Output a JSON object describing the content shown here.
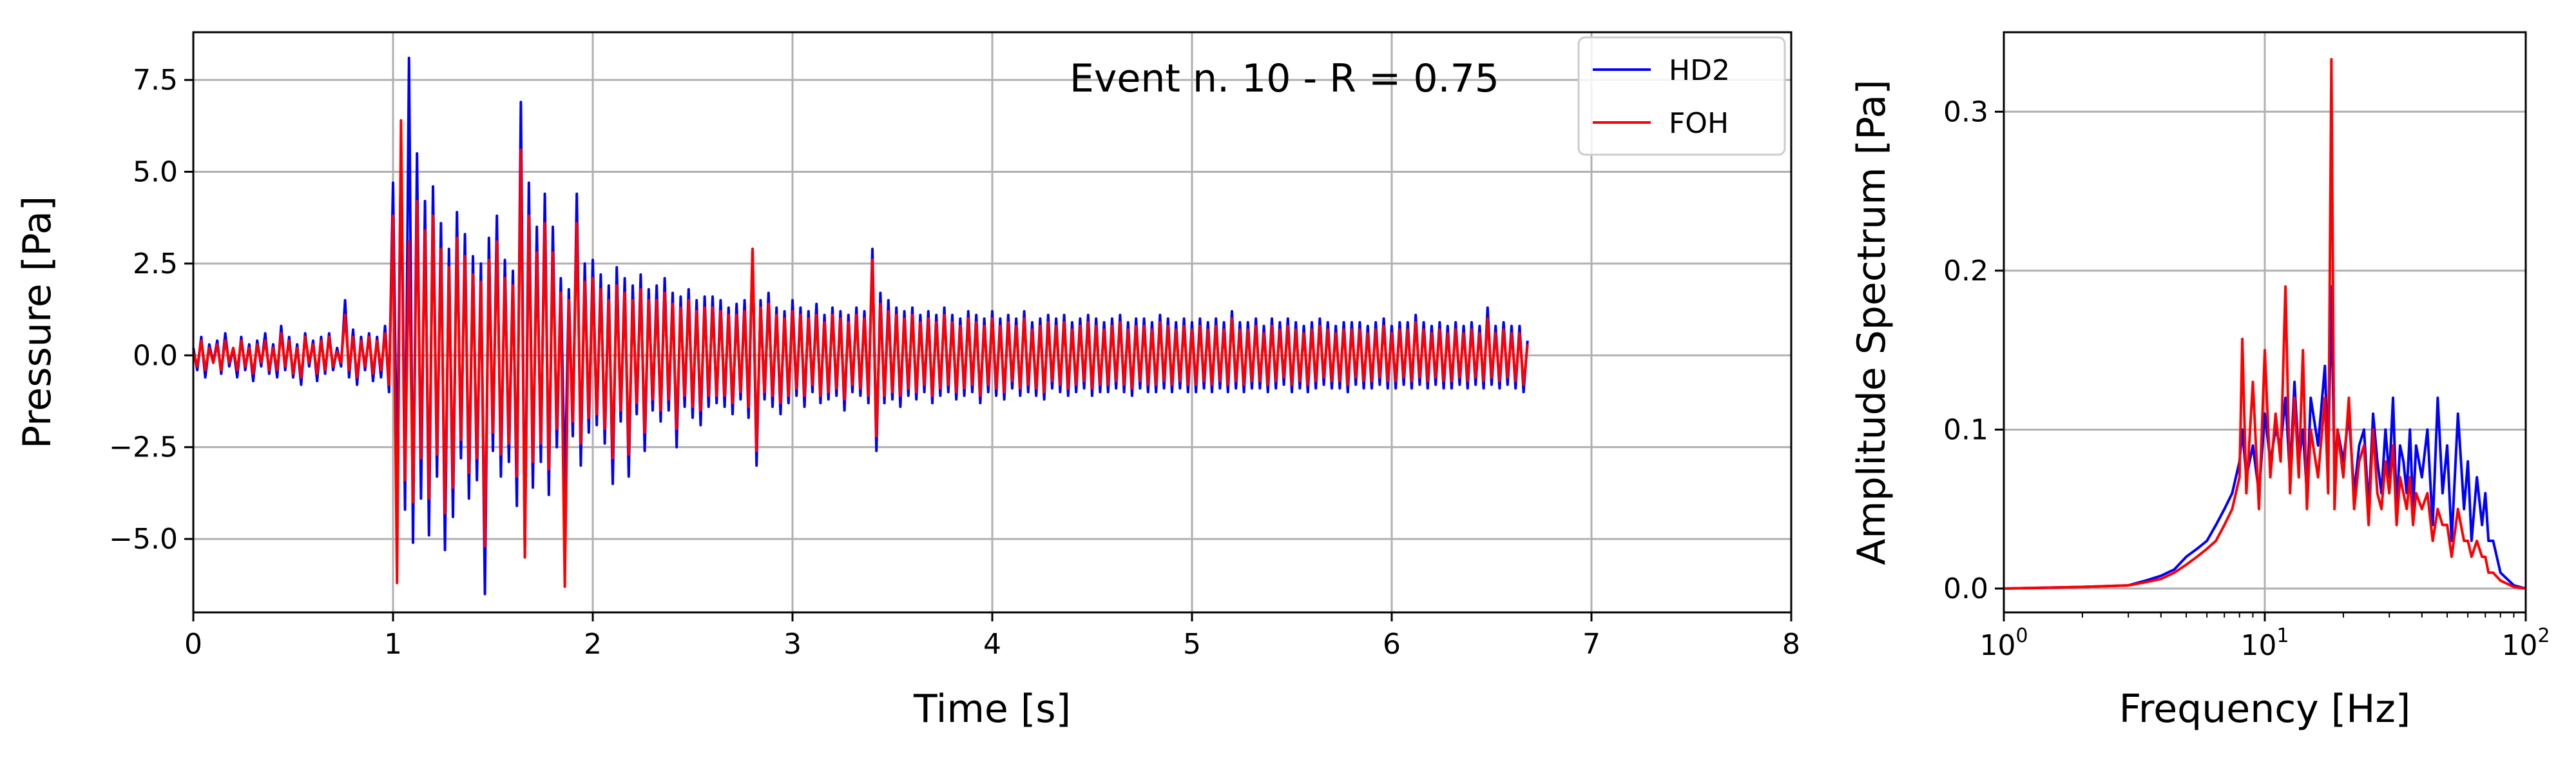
{
  "colors": {
    "hd2": "#0000ff",
    "foh": "#ff0000",
    "grid": "#b0b0b0",
    "axis": "#000000"
  },
  "chart_data": [
    {
      "type": "line",
      "title": "",
      "annotation": "Event n. 10 - R = 0.75",
      "xlabel": "Time [s]",
      "ylabel": "Pressure [Pa]",
      "xlim": [
        0,
        8
      ],
      "ylim": [
        -7.0,
        8.8
      ],
      "xticks": [
        0,
        1,
        2,
        3,
        4,
        5,
        6,
        7,
        8
      ],
      "xtick_labels": [
        "0",
        "1",
        "2",
        "3",
        "4",
        "5",
        "6",
        "7",
        "8"
      ],
      "yticks": [
        -5.0,
        -2.5,
        0.0,
        2.5,
        5.0,
        7.5
      ],
      "ytick_labels": [
        "−5.0",
        "−2.5",
        "0.0",
        "2.5",
        "5.0",
        "7.5"
      ],
      "grid": true,
      "legend": {
        "placement": "top-right",
        "entries": [
          "HD2",
          "FOH"
        ]
      },
      "series": [
        {
          "name": "HD2",
          "color": "#0000ff",
          "sample_interval_s": 0.02,
          "x_start": 0,
          "values": [
            0.2,
            -0.4,
            0.5,
            -0.6,
            0.3,
            -0.2,
            0.4,
            -0.5,
            0.6,
            -0.3,
            0.2,
            -0.6,
            0.5,
            -0.4,
            0.3,
            -0.7,
            0.4,
            -0.3,
            0.6,
            -0.5,
            0.3,
            -0.6,
            0.8,
            -0.4,
            0.5,
            -0.6,
            0.3,
            -0.8,
            0.6,
            -0.3,
            0.4,
            -0.7,
            0.5,
            -0.5,
            0.6,
            -0.4,
            0.2,
            -0.3,
            1.5,
            -0.6,
            0.7,
            -0.8,
            0.5,
            -0.4,
            0.6,
            -0.7,
            0.5,
            -0.6,
            0.8,
            -1.0,
            4.7,
            -3.5,
            5.8,
            -4.2,
            8.1,
            -5.1,
            5.5,
            -3.9,
            4.2,
            -4.9,
            4.6,
            -3.3,
            3.6,
            -5.3,
            2.9,
            -4.4,
            3.9,
            -2.8,
            3.3,
            -3.9,
            2.7,
            -3.4,
            2.5,
            -6.5,
            3.2,
            -2.6,
            3.8,
            -3.3,
            2.6,
            -2.9,
            2.3,
            -4.1,
            6.9,
            -5.5,
            4.7,
            -3.6,
            3.5,
            -2.9,
            4.4,
            -3.8,
            3.5,
            -2.5,
            2.1,
            -3.7,
            1.8,
            -2.2,
            4.4,
            -3.0,
            2.5,
            -2.1,
            2.6,
            -1.9,
            2.2,
            -2.4,
            1.9,
            -3.5,
            2.4,
            -1.8,
            2.1,
            -3.3,
            1.9,
            -1.6,
            2.2,
            -2.6,
            1.8,
            -1.5,
            1.9,
            -1.8,
            2.1,
            -1.5,
            1.7,
            -2.5,
            1.6,
            -1.4,
            1.8,
            -1.7,
            1.5,
            -1.9,
            1.6,
            -1.4,
            1.6,
            -1.3,
            1.5,
            -1.4,
            1.3,
            -1.6,
            1.4,
            -1.2,
            1.5,
            -1.7,
            2.9,
            -3.0,
            1.5,
            -1.2,
            1.7,
            -1.4,
            1.3,
            -1.6,
            1.2,
            -1.3,
            1.5,
            -1.1,
            1.3,
            -1.4,
            1.2,
            -1.0,
            1.4,
            -1.3,
            1.1,
            -1.2,
            1.3,
            -1.1,
            1.2,
            -1.5,
            1.1,
            -1.0,
            1.3,
            -1.1,
            1.2,
            -1.3,
            2.9,
            -2.6,
            1.7,
            -1.3,
            1.5,
            -1.2,
            1.3,
            -1.4,
            1.2,
            -1.1,
            1.3,
            -1.2,
            1.1,
            -1.0,
            1.2,
            -1.3,
            1.1,
            -1.1,
            1.3,
            -1.0,
            1.1,
            -1.2,
            1.0,
            -1.1,
            1.2,
            -1.0,
            1.1,
            -1.3,
            1.0,
            -1.0,
            1.2,
            -1.1,
            1.0,
            -1.2,
            1.1,
            -0.9,
            1.0,
            -1.1,
            1.2,
            -1.0,
            0.9,
            -1.1,
            1.0,
            -1.2,
            1.1,
            -0.9,
            1.0,
            -1.0,
            1.1,
            -1.1,
            0.9,
            -1.0,
            1.0,
            -0.9,
            1.1,
            -1.1,
            1.0,
            -1.0,
            0.9,
            -1.0,
            1.0,
            -0.9,
            1.1,
            -1.0,
            0.9,
            -1.1,
            1.0,
            -0.9,
            1.0,
            -1.0,
            0.9,
            -1.0,
            1.1,
            -0.9,
            1.0,
            -1.0,
            0.9,
            -0.9,
            1.0,
            -1.0,
            0.9,
            -1.0,
            1.0,
            -0.9,
            0.9,
            -1.0,
            1.0,
            -0.9,
            0.9,
            -1.0,
            1.2,
            -0.9,
            0.9,
            -1.0,
            0.9,
            -0.9,
            1.0,
            -0.9,
            0.8,
            -1.0,
            1.0,
            -0.9,
            0.9,
            -0.8,
            1.0,
            -1.0,
            0.9,
            -0.9,
            0.8,
            -1.0,
            0.9,
            -0.9,
            1.0,
            -0.8,
            0.9,
            -0.9,
            0.8,
            -0.9,
            0.9,
            -1.0,
            0.9,
            -0.8,
            0.9,
            -0.9,
            0.8,
            -0.9,
            0.9,
            -0.8,
            1.0,
            -0.9,
            0.8,
            -0.9,
            0.9,
            -0.8,
            0.9,
            -0.9,
            1.1,
            -0.8,
            0.9,
            -0.9,
            0.8,
            -0.8,
            0.9,
            -0.9,
            0.8,
            -0.9,
            0.9,
            -0.8,
            0.8,
            -0.9,
            0.9,
            -0.8,
            0.8,
            -0.9,
            1.3,
            -0.8,
            0.8,
            -0.9,
            0.9,
            -0.8,
            0.8,
            -0.9,
            0.8,
            -1.0,
            0.4
          ]
        },
        {
          "name": "FOH",
          "color": "#ff0000",
          "sample_interval_s": 0.02,
          "x_start": 0,
          "values": [
            0.1,
            -0.3,
            0.4,
            -0.4,
            0.2,
            -0.2,
            0.3,
            -0.4,
            0.4,
            -0.2,
            0.2,
            -0.4,
            0.4,
            -0.3,
            0.2,
            -0.5,
            0.3,
            -0.2,
            0.4,
            -0.4,
            0.2,
            -0.4,
            0.6,
            -0.3,
            0.4,
            -0.5,
            0.2,
            -0.6,
            0.5,
            -0.2,
            0.3,
            -0.5,
            0.4,
            -0.4,
            0.5,
            -0.3,
            0.1,
            -0.2,
            1.1,
            -0.4,
            0.5,
            -0.6,
            0.4,
            -0.3,
            0.5,
            -0.5,
            0.4,
            -0.4,
            0.6,
            -0.8,
            3.8,
            -6.2,
            6.4,
            -3.4,
            3.1,
            -4.0,
            4.2,
            -2.8,
            3.4,
            -3.9,
            3.8,
            -2.7,
            2.9,
            -4.3,
            2.4,
            -3.6,
            3.2,
            -2.3,
            2.7,
            -3.2,
            2.2,
            -2.8,
            2.0,
            -5.2,
            2.6,
            -2.1,
            3.1,
            -2.7,
            2.1,
            -2.4,
            1.9,
            -3.3,
            5.6,
            -5.5,
            3.8,
            -2.9,
            2.8,
            -2.4,
            3.6,
            -3.1,
            2.8,
            -2.0,
            1.7,
            -6.3,
            1.5,
            -1.8,
            3.6,
            -2.4,
            2.0,
            -1.7,
            2.1,
            -1.6,
            1.8,
            -2.0,
            1.5,
            -2.8,
            1.9,
            -1.5,
            1.7,
            -2.7,
            1.5,
            -1.3,
            1.8,
            -2.1,
            1.5,
            -1.2,
            1.5,
            -1.5,
            1.7,
            -1.2,
            1.4,
            -2.0,
            1.3,
            -1.1,
            1.5,
            -1.4,
            1.2,
            -1.5,
            1.3,
            -1.1,
            1.3,
            -1.1,
            1.2,
            -1.1,
            1.1,
            -1.3,
            1.1,
            -1.0,
            1.2,
            -1.4,
            2.9,
            -2.6,
            1.3,
            -1.0,
            1.4,
            -1.1,
            1.1,
            -1.3,
            1.0,
            -1.1,
            1.2,
            -0.9,
            1.1,
            -1.1,
            1.0,
            -0.8,
            1.1,
            -1.1,
            0.9,
            -1.0,
            1.1,
            -0.9,
            1.0,
            -1.2,
            0.9,
            -0.8,
            1.1,
            -0.9,
            1.0,
            -1.1,
            2.6,
            -2.2,
            1.4,
            -1.1,
            1.2,
            -1.0,
            1.1,
            -1.1,
            1.0,
            -0.9,
            1.1,
            -1.0,
            0.9,
            -0.8,
            1.0,
            -1.1,
            0.9,
            -0.9,
            1.1,
            -0.8,
            0.9,
            -1.0,
            0.8,
            -0.9,
            1.0,
            -0.8,
            0.9,
            -1.1,
            0.8,
            -0.8,
            1.0,
            -0.9,
            0.8,
            -1.0,
            0.9,
            -0.7,
            0.8,
            -0.9,
            1.0,
            -0.8,
            0.7,
            -0.9,
            0.8,
            -1.0,
            0.9,
            -0.7,
            0.8,
            -0.8,
            0.9,
            -0.9,
            0.7,
            -0.8,
            0.8,
            -0.7,
            0.9,
            -0.9,
            0.8,
            -0.8,
            0.7,
            -0.8,
            0.8,
            -0.7,
            0.9,
            -0.8,
            0.7,
            -0.9,
            0.8,
            -0.7,
            0.8,
            -0.8,
            0.7,
            -0.8,
            0.9,
            -0.7,
            0.8,
            -0.8,
            0.7,
            -0.7,
            0.8,
            -0.8,
            0.7,
            -0.8,
            0.8,
            -0.7,
            0.7,
            -0.8,
            0.8,
            -0.7,
            0.7,
            -0.8,
            1.0,
            -0.7,
            0.7,
            -0.8,
            0.7,
            -0.7,
            0.8,
            -0.7,
            0.6,
            -0.8,
            0.8,
            -0.7,
            0.7,
            -0.6,
            0.8,
            -0.8,
            0.7,
            -0.7,
            0.6,
            -0.8,
            0.7,
            -0.7,
            0.8,
            -0.6,
            0.7,
            -0.7,
            0.6,
            -0.7,
            0.7,
            -0.8,
            0.7,
            -0.6,
            0.7,
            -0.7,
            0.6,
            -0.7,
            0.7,
            -0.6,
            0.8,
            -0.7,
            0.6,
            -0.7,
            0.7,
            -0.6,
            0.7,
            -0.7,
            0.9,
            -0.6,
            0.7,
            -0.7,
            0.6,
            -0.6,
            0.7,
            -0.7,
            0.6,
            -0.7,
            0.7,
            -0.6,
            0.6,
            -0.7,
            0.7,
            -0.6,
            0.6,
            -0.7,
            1.0,
            -0.6,
            0.6,
            -0.7,
            0.7,
            -0.6,
            0.6,
            -0.7,
            0.6,
            -0.8,
            0.3
          ]
        }
      ]
    },
    {
      "type": "line",
      "title": "",
      "xlabel": "Frequency [Hz]",
      "ylabel": "Amplitude Spectrum [Pa]",
      "xscale": "log",
      "xlim": [
        1,
        100
      ],
      "ylim": [
        -0.015,
        0.35
      ],
      "xticks": [
        1,
        10,
        100
      ],
      "xtick_labels": [
        {
          "base": "10",
          "exp": "0"
        },
        {
          "base": "10",
          "exp": "1"
        },
        {
          "base": "10",
          "exp": "2"
        }
      ],
      "yticks": [
        0.0,
        0.1,
        0.2,
        0.3
      ],
      "ytick_labels": [
        "0.0",
        "0.1",
        "0.2",
        "0.3"
      ],
      "grid": true,
      "series": [
        {
          "name": "HD2",
          "color": "#0000ff",
          "x": [
            1,
            2,
            3,
            3.5,
            4,
            4.5,
            5,
            5.5,
            6,
            6.5,
            7,
            7.5,
            8,
            8.2,
            8.5,
            9,
            9.5,
            10,
            10.5,
            11,
            11.5,
            12,
            12.5,
            13,
            13.5,
            14,
            14.5,
            15,
            16,
            17,
            17.5,
            18,
            18.5,
            19,
            20,
            21,
            22,
            23,
            24,
            25,
            26,
            27,
            28,
            29,
            30,
            31,
            32,
            33,
            34,
            35,
            36,
            37,
            38,
            40,
            42,
            44,
            46,
            48,
            50,
            52,
            55,
            58,
            60,
            62,
            65,
            68,
            70,
            72,
            75,
            80,
            90,
            100
          ],
          "y": [
            0,
            0.001,
            0.002,
            0.005,
            0.008,
            0.012,
            0.02,
            0.025,
            0.03,
            0.04,
            0.05,
            0.06,
            0.08,
            0.1,
            0.07,
            0.09,
            0.06,
            0.11,
            0.08,
            0.1,
            0.09,
            0.12,
            0.07,
            0.13,
            0.08,
            0.1,
            0.06,
            0.12,
            0.09,
            0.14,
            0.08,
            0.19,
            0.07,
            0.1,
            0.08,
            0.11,
            0.06,
            0.09,
            0.1,
            0.05,
            0.11,
            0.08,
            0.06,
            0.1,
            0.07,
            0.12,
            0.05,
            0.09,
            0.08,
            0.06,
            0.1,
            0.05,
            0.09,
            0.07,
            0.1,
            0.04,
            0.12,
            0.06,
            0.09,
            0.03,
            0.11,
            0.05,
            0.08,
            0.03,
            0.07,
            0.04,
            0.06,
            0.03,
            0.03,
            0.01,
            0.002,
            0
          ]
        },
        {
          "name": "FOH",
          "color": "#ff0000",
          "x": [
            1,
            2,
            3,
            3.5,
            4,
            4.5,
            5,
            5.5,
            6,
            6.5,
            7,
            7.5,
            8,
            8.2,
            8.5,
            9,
            9.5,
            10,
            10.5,
            11,
            11.5,
            12,
            12.5,
            13,
            13.5,
            14,
            14.5,
            15,
            16,
            17,
            17.5,
            18,
            18.5,
            19,
            20,
            21,
            22,
            23,
            24,
            25,
            26,
            27,
            28,
            29,
            30,
            31,
            32,
            33,
            34,
            35,
            36,
            37,
            38,
            40,
            42,
            44,
            46,
            48,
            50,
            52,
            55,
            58,
            60,
            62,
            65,
            68,
            70,
            72,
            75,
            80,
            90,
            100
          ],
          "y": [
            0,
            0.001,
            0.002,
            0.004,
            0.006,
            0.01,
            0.015,
            0.02,
            0.025,
            0.03,
            0.04,
            0.05,
            0.07,
            0.157,
            0.06,
            0.13,
            0.05,
            0.15,
            0.07,
            0.11,
            0.08,
            0.19,
            0.06,
            0.12,
            0.07,
            0.15,
            0.05,
            0.1,
            0.07,
            0.12,
            0.06,
            0.333,
            0.05,
            0.1,
            0.07,
            0.12,
            0.05,
            0.08,
            0.09,
            0.04,
            0.1,
            0.06,
            0.05,
            0.08,
            0.06,
            0.09,
            0.04,
            0.07,
            0.06,
            0.05,
            0.07,
            0.04,
            0.06,
            0.05,
            0.06,
            0.03,
            0.05,
            0.04,
            0.04,
            0.02,
            0.05,
            0.03,
            0.03,
            0.02,
            0.03,
            0.02,
            0.02,
            0.01,
            0.01,
            0.005,
            0.001,
            0
          ]
        }
      ]
    }
  ]
}
